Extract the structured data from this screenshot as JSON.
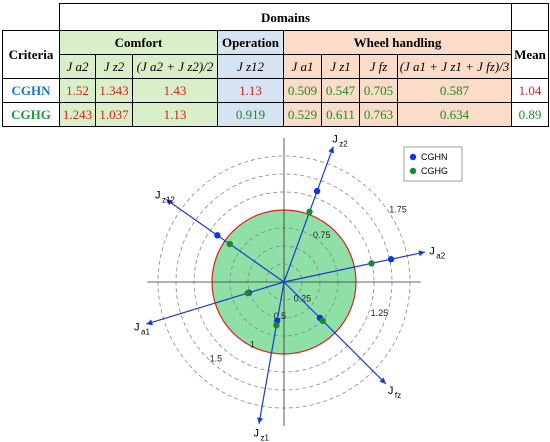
{
  "table": {
    "domains_label": "Domains",
    "groups": {
      "comfort": "Comfort",
      "operation": "Operation",
      "wheel": "Wheel handling"
    },
    "criteria_label": "Criteria",
    "mean_label": "Mean",
    "columns": [
      "J a2",
      "J z2",
      "(J a2 + J z2)/2",
      "J z12",
      "J a1",
      "J z1",
      "J fz",
      "(J a1 + J z1 + J fz)/3"
    ],
    "rows": [
      {
        "name": "CGHN",
        "values": [
          "1.52",
          "1.343",
          "1.43",
          "1.13",
          "0.509",
          "0.547",
          "0.705",
          "0.587"
        ],
        "mean": "1.04"
      },
      {
        "name": "CGHG",
        "values": [
          "1.243",
          "1.037",
          "1.13",
          "",
          "0.529",
          "0.611",
          "0.763",
          "0.634"
        ],
        "mean": "0.89"
      }
    ],
    "colors": {
      "comfort": "#d8efc8",
      "operation": "#d6e3f3",
      "wheel": "#fbdcc9",
      "value_red": "#d42020",
      "value_green": "#1f8a1f"
    },
    "operation_cghg_value": "0.919"
  },
  "chart_data": {
    "type": "radar",
    "axes": [
      {
        "label": "J z2",
        "angle_deg": 70
      },
      {
        "label": "J a2",
        "angle_deg": 12
      },
      {
        "label": "J fz",
        "angle_deg": -45
      },
      {
        "label": "J z1",
        "angle_deg": -100
      },
      {
        "label": "J a1",
        "angle_deg": 197
      },
      {
        "label": "J z12",
        "angle_deg": 145
      }
    ],
    "rings": [
      0.25,
      0.5,
      0.75,
      1,
      1.25,
      1.5,
      1.75
    ],
    "ring_labels": [
      "0.25",
      "0.5",
      "0.75",
      "1",
      "1.25",
      "1.5",
      "1.75"
    ],
    "reference_radius": 1,
    "series": [
      {
        "name": "CGHN",
        "color": "#1434e0",
        "values": {
          "J z2": 1.343,
          "J a2": 1.52,
          "J fz": 0.705,
          "J z1": 0.547,
          "J a1": 0.509,
          "J z12": 1.13
        }
      },
      {
        "name": "CGHG",
        "color": "#1a8a2a",
        "values": {
          "J z2": 1.037,
          "J a2": 1.243,
          "J fz": 0.763,
          "J z1": 0.611,
          "J a1": 0.529,
          "J z12": 0.919
        }
      }
    ],
    "legend_position": "top-right",
    "colors": {
      "axis": "#1a3ad6",
      "fill": "#8ee0a6",
      "reference_circle": "#e02020",
      "rings": "#888888"
    }
  }
}
